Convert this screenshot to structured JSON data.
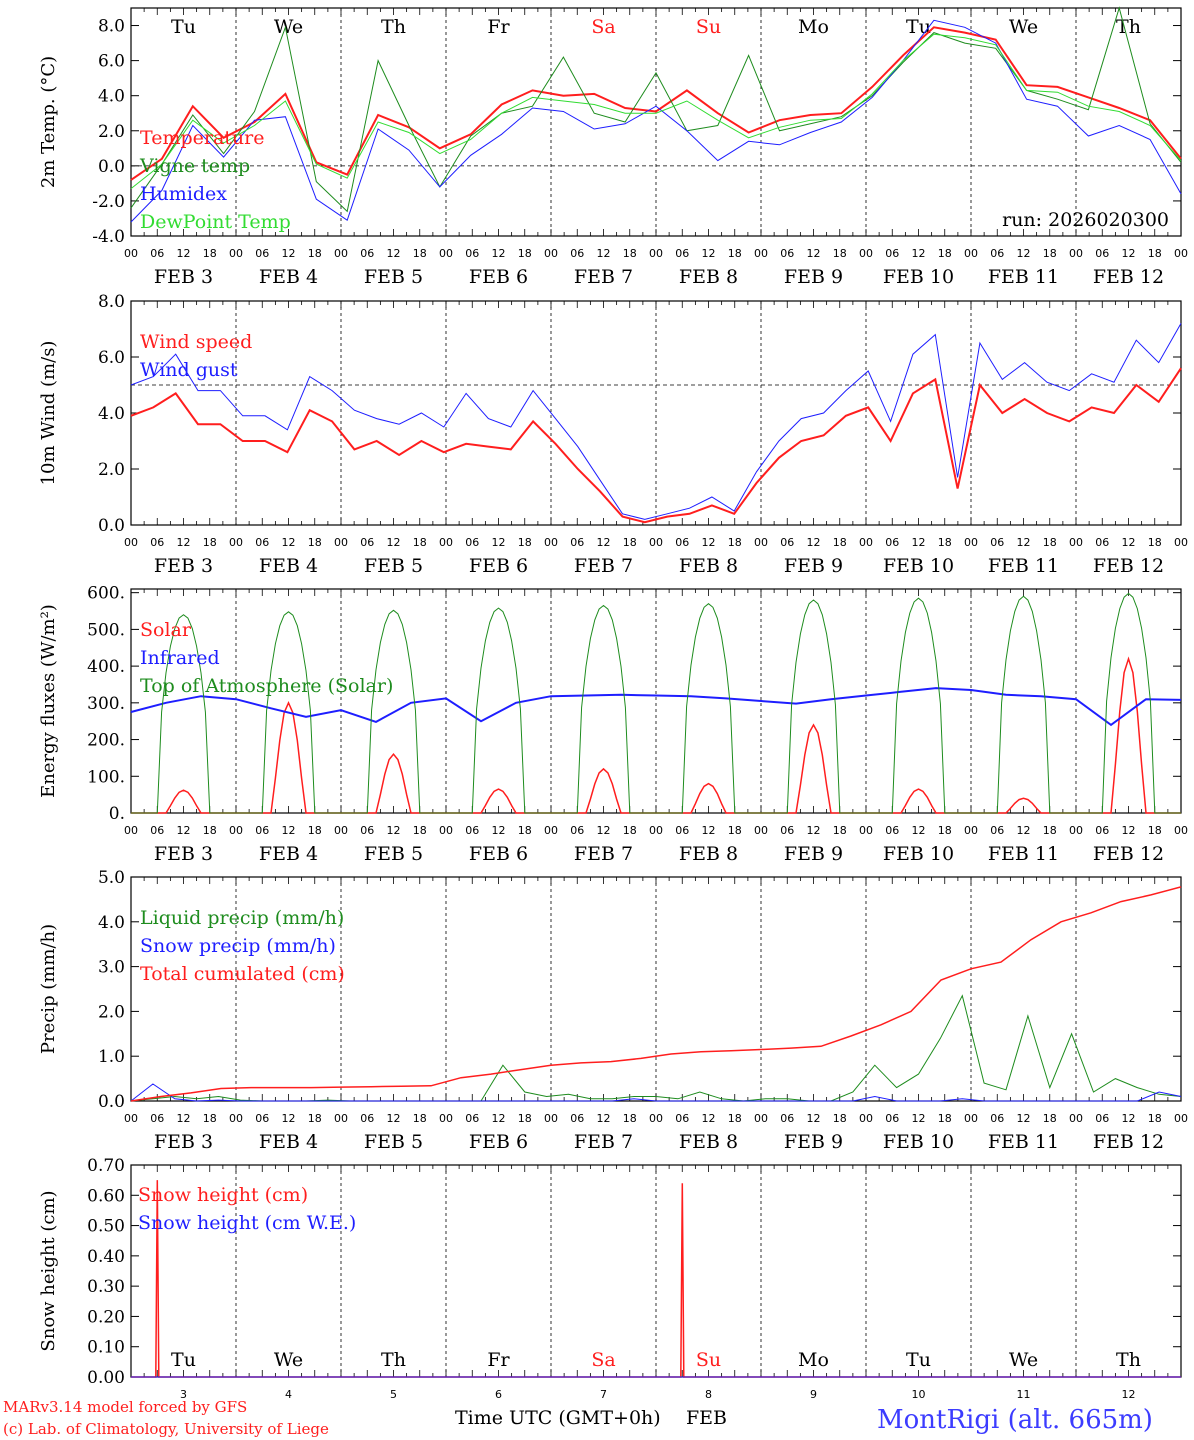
{
  "days": {
    "weekday_labels": [
      "Tu",
      "We",
      "Th",
      "Fr",
      "Sa",
      "Su",
      "Mo",
      "Tu",
      "We",
      "Th"
    ],
    "weekend_color": "#ff1e1e",
    "weekend_index": [
      4,
      5
    ],
    "date_labels": [
      "FEB  3",
      "FEB  4",
      "FEB  5",
      "FEB  6",
      "FEB  7",
      "FEB  8",
      "FEB  9",
      "FEB 10",
      "FEB 11",
      "FEB 12"
    ],
    "bottom_day_numbers": [
      "3",
      "4",
      "5",
      "6",
      "7",
      "8",
      "9",
      "10",
      "11",
      "12"
    ],
    "hour_labels": [
      "00",
      "06",
      "12",
      "18"
    ],
    "last_hour_label": "00"
  },
  "footer": {
    "model_line": "MARv3.14 model forced by GFS",
    "credit_line": "(c) Lab. of Climatology, University of Liege",
    "axis_title": "Time UTC (GMT+0h)",
    "month": "FEB",
    "station": "MontRigi (alt. 665m)",
    "credit_color": "#ff1e1e",
    "station_color": "#3c3cff"
  },
  "chart_data": [
    {
      "type": "line",
      "id": "temp",
      "ylabel": "2m Temp. (°C)",
      "ylim": [
        -4,
        9
      ],
      "yticks": [
        "-4.0",
        "-2.0",
        "0.0",
        "2.0",
        "4.0",
        "6.0",
        "8.0"
      ],
      "ytick_values": [
        -4,
        -2,
        0,
        2,
        4,
        6,
        8
      ],
      "ref_line": 0,
      "run_label": "run: 2026020300",
      "x_hours": [
        0,
        6,
        12,
        18,
        24,
        30,
        36,
        42,
        48,
        54,
        60,
        66,
        72,
        78,
        84,
        90,
        96,
        102,
        108,
        114,
        120,
        126,
        132,
        138,
        144,
        150,
        156,
        162,
        168,
        174,
        180,
        186,
        192,
        198,
        204,
        210,
        216,
        222,
        228,
        234,
        240
      ],
      "series": [
        {
          "name": "Temperature",
          "color": "#ff1e1e",
          "width": 2,
          "values": [
            -0.8,
            0.4,
            3.4,
            1.6,
            2.5,
            4.1,
            0.2,
            -0.5,
            2.9,
            2.2,
            1.0,
            1.8,
            3.5,
            4.3,
            4.0,
            4.1,
            3.3,
            3.1,
            4.3,
            3.0,
            1.9,
            2.6,
            2.9,
            3.0,
            4.5,
            6.3,
            7.9,
            7.6,
            7.2,
            4.6,
            4.5,
            3.9,
            3.3,
            2.6,
            0.4
          ]
        },
        {
          "name": "Vigne temp",
          "color": "#1e8c1e",
          "width": 1,
          "values": [
            -2.4,
            0.1,
            2.9,
            0.7,
            3.1,
            7.9,
            -0.9,
            -2.6,
            6.0,
            2.3,
            -1.2,
            1.7,
            3.0,
            3.4,
            6.2,
            3.0,
            2.5,
            5.3,
            2.0,
            2.3,
            6.3,
            2.0,
            2.4,
            2.8,
            4.0,
            5.9,
            7.6,
            7.0,
            6.7,
            4.3,
            3.8,
            3.2,
            9.0,
            2.4,
            0.2
          ]
        },
        {
          "name": "Humidex",
          "color": "#1e1eff",
          "width": 1,
          "values": [
            -3.2,
            -1.4,
            2.3,
            0.5,
            2.6,
            2.8,
            -1.9,
            -3.1,
            2.1,
            0.9,
            -1.2,
            0.6,
            1.8,
            3.3,
            3.1,
            2.1,
            2.4,
            3.4,
            2.0,
            0.3,
            1.4,
            1.2,
            1.9,
            2.5,
            3.9,
            6.0,
            8.3,
            7.9,
            7.0,
            3.8,
            3.4,
            1.7,
            2.3,
            1.5,
            -1.6
          ]
        },
        {
          "name": "DewPoint Temp",
          "color": "#32dc32",
          "width": 1,
          "values": [
            -1.3,
            0.1,
            2.6,
            1.3,
            2.3,
            3.7,
            0.1,
            -0.7,
            2.5,
            1.9,
            0.7,
            1.5,
            3.0,
            3.9,
            3.7,
            3.5,
            3.0,
            3.0,
            3.7,
            2.6,
            1.6,
            2.2,
            2.6,
            2.7,
            4.1,
            6.0,
            7.5,
            7.3,
            6.9,
            4.3,
            4.2,
            3.4,
            3.1,
            2.3,
            0.3
          ]
        }
      ]
    },
    {
      "type": "line",
      "id": "wind",
      "ylabel": "10m Wind (m/s)",
      "ylim": [
        0,
        8
      ],
      "yticks": [
        "0.0",
        "2.0",
        "4.0",
        "6.0",
        "8.0"
      ],
      "ytick_values": [
        0,
        2,
        4,
        6,
        8
      ],
      "ref_line": 5,
      "series": [
        {
          "name": "Wind speed",
          "color": "#ff1e1e",
          "width": 2,
          "values": [
            3.9,
            4.2,
            4.7,
            3.6,
            3.6,
            3.0,
            3.0,
            2.6,
            4.1,
            3.7,
            2.7,
            3.0,
            2.5,
            3.0,
            2.6,
            2.9,
            2.8,
            2.7,
            3.7,
            2.9,
            2.0,
            1.2,
            0.3,
            0.1,
            0.3,
            0.4,
            0.7,
            0.4,
            1.5,
            2.4,
            3.0,
            3.2,
            3.9,
            4.2,
            3.0,
            4.7,
            5.2,
            1.3,
            5.0,
            4.0,
            4.5,
            4.0,
            3.7,
            4.2,
            4.0,
            5.0,
            4.4,
            5.6
          ]
        },
        {
          "name": "Wind gust",
          "color": "#1e1eff",
          "width": 1,
          "values": [
            5.0,
            5.3,
            6.1,
            4.8,
            4.8,
            3.9,
            3.9,
            3.4,
            5.3,
            4.8,
            4.1,
            3.8,
            3.6,
            4.0,
            3.5,
            4.7,
            3.8,
            3.5,
            4.8,
            3.8,
            2.8,
            1.6,
            0.4,
            0.2,
            0.4,
            0.6,
            1.0,
            0.5,
            1.9,
            3.0,
            3.8,
            4.0,
            4.8,
            5.5,
            3.7,
            6.1,
            6.8,
            1.7,
            6.5,
            5.2,
            5.8,
            5.1,
            4.8,
            5.4,
            5.1,
            6.6,
            5.8,
            7.2
          ]
        }
      ]
    },
    {
      "type": "line",
      "id": "energy",
      "ylabel": "Energy fluxes (W/m²)",
      "ylim": [
        0,
        610
      ],
      "yticks": [
        "0.",
        "100.",
        "200.",
        "300.",
        "400.",
        "500.",
        "600."
      ],
      "ytick_values": [
        0,
        100,
        200,
        300,
        400,
        500,
        600
      ],
      "series": [
        {
          "name": "Solar",
          "color": "#ff1e1e",
          "width": 1.5,
          "peaks": [
            62,
            300,
            160,
            65,
            120,
            80,
            240,
            65,
            40,
            420
          ]
        },
        {
          "name": "Infrared",
          "color": "#1e1eff",
          "width": 2,
          "values": [
            275,
            300,
            318,
            310,
            285,
            262,
            280,
            248,
            300,
            312,
            250,
            300,
            318,
            320,
            322,
            320,
            318,
            312,
            305,
            298,
            310,
            320,
            330,
            340,
            335,
            322,
            318,
            310,
            240,
            310,
            308
          ]
        },
        {
          "name": "Top of Atmosphere (Solar)",
          "color": "#1e8c1e",
          "width": 1,
          "peaks": [
            540,
            548,
            552,
            558,
            565,
            570,
            580,
            585,
            590,
            598
          ]
        }
      ]
    },
    {
      "type": "line",
      "id": "precip",
      "ylabel": "Precip (mm/h)",
      "ylim": [
        0,
        5
      ],
      "yticks": [
        "0.0",
        "1.0",
        "2.0",
        "3.0",
        "4.0",
        "5.0"
      ],
      "ytick_values": [
        0,
        1,
        2,
        3,
        4,
        5
      ],
      "series": [
        {
          "name": "Liquid precip (mm/h)",
          "color": "#1e8c1e",
          "width": 1,
          "values": [
            0,
            0.05,
            0.1,
            0.05,
            0.1,
            0.02,
            0,
            0,
            0,
            0.02,
            0,
            0,
            0,
            0,
            0,
            0,
            0,
            0.8,
            0.2,
            0.1,
            0.15,
            0.05,
            0.05,
            0.1,
            0.1,
            0.05,
            0.2,
            0.05,
            0,
            0.05,
            0.05,
            0,
            0,
            0.2,
            0.8,
            0.3,
            0.6,
            1.4,
            2.35,
            0.4,
            0.25,
            1.9,
            0.3,
            1.5,
            0.2,
            0.5,
            0.3,
            0.15,
            0.1
          ]
        },
        {
          "name": "Snow precip (mm/h)",
          "color": "#1e1eff",
          "width": 1,
          "values": [
            0,
            0.38,
            0.05,
            0,
            0.02,
            0,
            0,
            0,
            0,
            0,
            0,
            0,
            0,
            0,
            0,
            0,
            0,
            0,
            0,
            0,
            0,
            0,
            0,
            0.05,
            0,
            0,
            0,
            0,
            0,
            0,
            0,
            0,
            0,
            0,
            0.1,
            0,
            0,
            0,
            0.05,
            0,
            0,
            0,
            0,
            0,
            0,
            0,
            0,
            0.2,
            0.1
          ]
        },
        {
          "name": "Total cumulated (cm)",
          "color": "#ff1e1e",
          "width": 1.5,
          "values": [
            0,
            0.1,
            0.18,
            0.28,
            0.3,
            0.3,
            0.3,
            0.31,
            0.32,
            0.33,
            0.34,
            0.52,
            0.6,
            0.7,
            0.8,
            0.85,
            0.88,
            0.95,
            1.05,
            1.1,
            1.12,
            1.15,
            1.18,
            1.22,
            1.45,
            1.7,
            2.0,
            2.7,
            2.95,
            3.1,
            3.6,
            4.0,
            4.2,
            4.45,
            4.6,
            4.78
          ]
        }
      ]
    },
    {
      "type": "line",
      "id": "snow",
      "ylabel": "Snow height (cm)",
      "ylim": [
        0,
        0.7
      ],
      "yticks": [
        "0.00",
        "0.10",
        "0.20",
        "0.30",
        "0.40",
        "0.50",
        "0.60",
        "0.70"
      ],
      "ytick_values": [
        0,
        0.1,
        0.2,
        0.3,
        0.4,
        0.5,
        0.6,
        0.7
      ],
      "series": [
        {
          "name": "Snow height (cm)",
          "color": "#ff1e1e",
          "width": 1.5,
          "spikes": [
            {
              "hour": 6,
              "value": 0.65
            },
            {
              "hour": 126,
              "value": 0.64
            }
          ]
        },
        {
          "name": "Snow height (cm W.E.)",
          "color": "#1e1eff",
          "width": 1,
          "spikes": []
        }
      ]
    }
  ]
}
